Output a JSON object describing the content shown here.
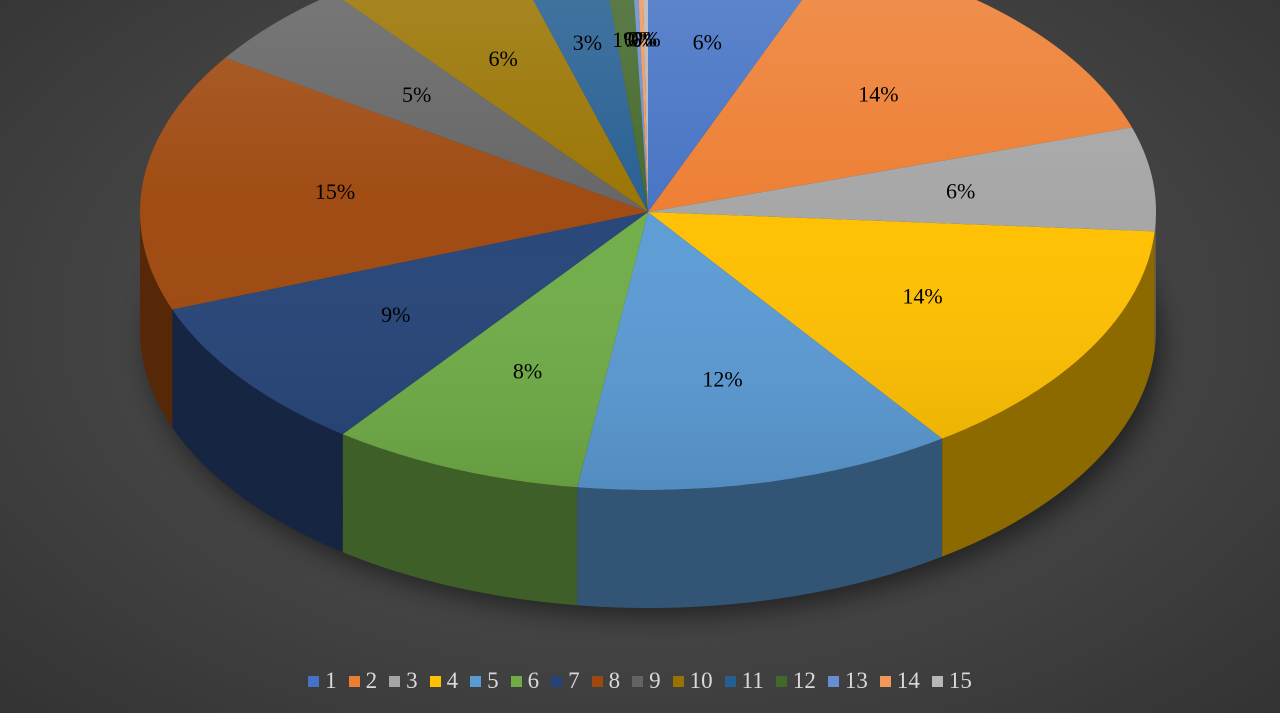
{
  "chart_data": {
    "type": "pie",
    "style": "3d",
    "title": "",
    "categories": [
      "1",
      "2",
      "3",
      "4",
      "5",
      "6",
      "7",
      "8",
      "9",
      "10",
      "11",
      "12",
      "13",
      "14",
      "15"
    ],
    "values": [
      6,
      14,
      6,
      14,
      12,
      8,
      9,
      15,
      5,
      6,
      3,
      1,
      0,
      0,
      0
    ],
    "data_labels": [
      "6%",
      "14%",
      "6%",
      "14%",
      "12%",
      "8%",
      "9%",
      "15%",
      "5%",
      "6%",
      "3%",
      "1%",
      "0%",
      "0%",
      "0%"
    ],
    "colors": [
      "#4472C4",
      "#ED7D31",
      "#A5A5A5",
      "#FFC000",
      "#5B9BD5",
      "#70AD47",
      "#264478",
      "#9E480E",
      "#636363",
      "#997300",
      "#255E91",
      "#43682B",
      "#698ED0",
      "#F1975A",
      "#B7B7B7"
    ],
    "legend_position": "bottom"
  }
}
